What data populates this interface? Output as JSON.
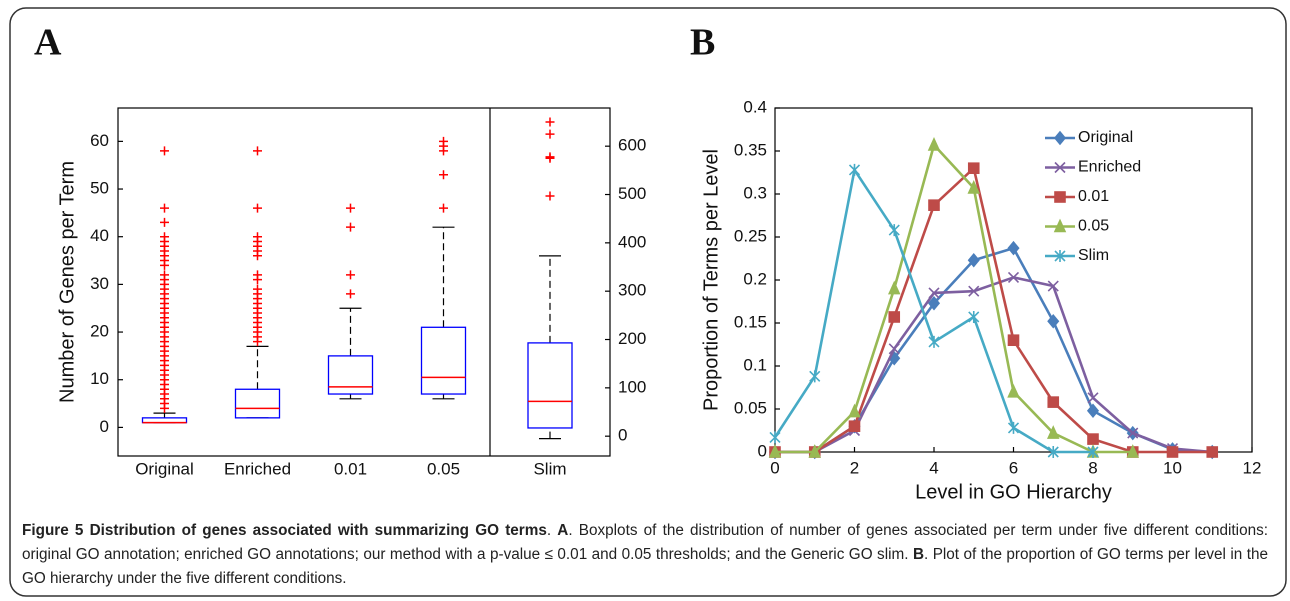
{
  "panels": {
    "a_label": "A",
    "b_label": "B"
  },
  "chart_data": [
    {
      "type": "box",
      "y_label": "Number of Genes per Term",
      "categories": [
        "Original",
        "Enriched",
        "0.01",
        "0.05",
        "Slim"
      ],
      "ylim": [
        -6,
        67
      ],
      "yticks": [
        0,
        10,
        20,
        30,
        40,
        50,
        60
      ],
      "y2lim": [
        -41,
        679
      ],
      "y2ticks": [
        0,
        100,
        200,
        300,
        400,
        500,
        600
      ],
      "box_color": "#0000ff",
      "median_color": "#ff0000",
      "flier_color": "#ff0000",
      "whisker_color": "#000000",
      "boxes": [
        {
          "whislo": 1,
          "q1": 1,
          "med": 1,
          "q3": 2,
          "whishi": 3,
          "fliers": [
            4,
            5,
            6,
            7,
            8,
            9,
            10,
            11,
            12,
            13,
            14,
            15,
            16,
            17,
            18,
            19,
            20,
            21,
            22,
            23,
            24,
            25,
            26,
            27,
            28,
            29,
            30,
            31,
            32,
            34,
            35,
            36,
            37,
            38,
            39,
            40,
            43,
            46,
            58
          ]
        },
        {
          "whislo": 2,
          "q1": 2,
          "med": 4,
          "q3": 8,
          "whishi": 17,
          "fliers": [
            18,
            19,
            20,
            21,
            22,
            23,
            24,
            25,
            26,
            27,
            28,
            29,
            31,
            32,
            36,
            37,
            38,
            39,
            40,
            46,
            58
          ]
        },
        {
          "whislo": 6,
          "q1": 7,
          "med": 8.5,
          "q3": 15,
          "whishi": 25,
          "fliers": [
            28,
            32,
            42,
            46
          ]
        },
        {
          "whislo": 6,
          "q1": 7,
          "med": 10.5,
          "q3": 21,
          "whishi": 42,
          "fliers": [
            46,
            53,
            58,
            59,
            60
          ]
        },
        {
          "axis": "y2",
          "whislo": -5,
          "q1": 17,
          "med": 72,
          "q3": 193,
          "whishi": 373,
          "fliers": [
            497,
            575,
            578,
            625,
            650
          ]
        }
      ]
    },
    {
      "type": "line",
      "x_label": "Level in GO Hierarchy",
      "y_label": "Proportion of Terms per Level",
      "x": [
        0,
        1,
        2,
        3,
        4,
        5,
        6,
        7,
        8,
        9,
        10,
        11
      ],
      "xlim": [
        0,
        12
      ],
      "xticks": [
        0,
        2,
        4,
        6,
        8,
        10,
        12
      ],
      "ylim": [
        0,
        0.4
      ],
      "yticks": [
        0,
        0.05,
        0.1,
        0.15,
        0.2,
        0.25,
        0.3,
        0.35,
        0.4
      ],
      "legend": "upper right",
      "series": [
        {
          "name": "Original",
          "color": "#4a7ebb",
          "marker": "diamond",
          "values": [
            0,
            0,
            0.03,
            0.109,
            0.173,
            0.223,
            0.237,
            0.152,
            0.048,
            0.022,
            0.003,
            0
          ]
        },
        {
          "name": "Enriched",
          "color": "#7d5fa0",
          "marker": "x",
          "values": [
            0,
            0,
            0.025,
            0.12,
            0.185,
            0.187,
            0.203,
            0.193,
            0.063,
            0.022,
            0.004,
            0
          ]
        },
        {
          "name": "0.01",
          "color": "#be4b48",
          "marker": "square",
          "values": [
            0,
            0,
            0.03,
            0.157,
            0.287,
            0.33,
            0.13,
            0.058,
            0.015,
            0,
            0,
            0
          ]
        },
        {
          "name": "0.05",
          "color": "#98b954",
          "marker": "triangle",
          "values": [
            0,
            0,
            0.047,
            0.19,
            0.357,
            0.307,
            0.07,
            0.022,
            0,
            0,
            null,
            null
          ]
        },
        {
          "name": "Slim",
          "color": "#46aac5",
          "marker": "star",
          "values": [
            0.017,
            0.088,
            0.328,
            0.258,
            0.128,
            0.157,
            0.028,
            0,
            0,
            null,
            null,
            null
          ]
        }
      ]
    }
  ],
  "caption": [
    {
      "text": "Figure 5 Distribution of genes associated with summarizing GO terms",
      "bold": true
    },
    {
      "text": ". ",
      "bold": false
    },
    {
      "text": "A",
      "bold": true
    },
    {
      "text": ". Boxplots of the distribution of number of genes associated per term under five different conditions: original GO annotation; enriched GO annotations; our method with a p-value ≤ 0.01 and 0.05 thresholds; and the Generic GO slim. ",
      "bold": false
    },
    {
      "text": "B",
      "bold": true
    },
    {
      "text": ". Plot of the proportion of GO terms per level in the GO hierarchy under the five different conditions.",
      "bold": false
    }
  ]
}
